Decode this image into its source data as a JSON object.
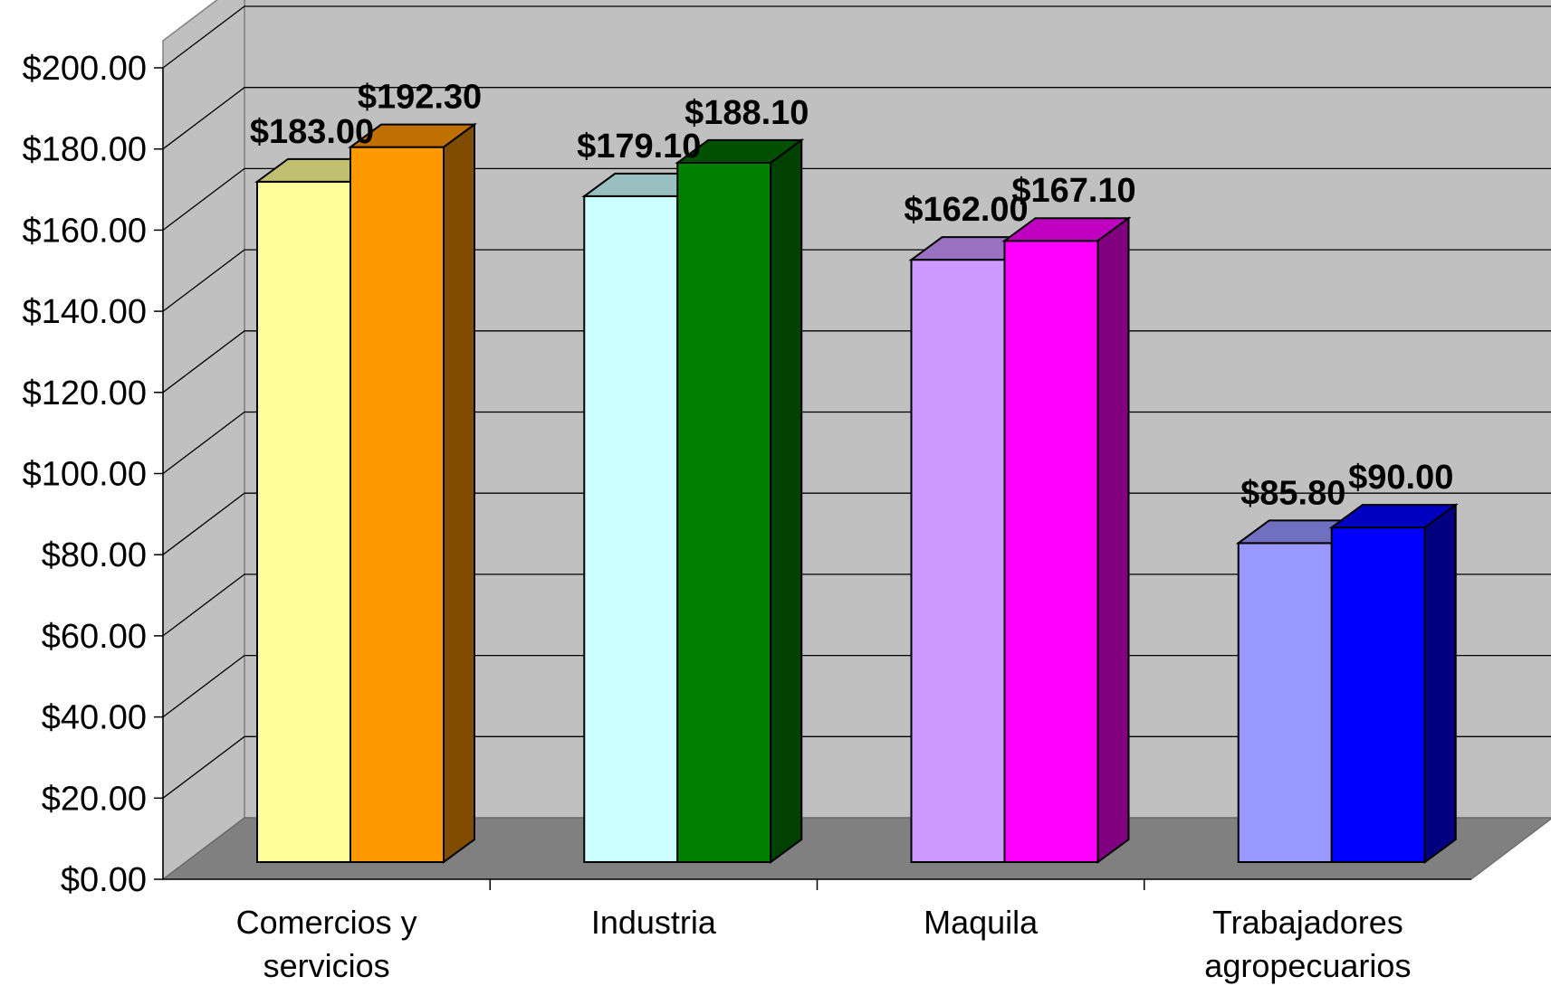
{
  "chart_data": {
    "type": "bar",
    "style": "3d-clustered-column",
    "categories": [
      [
        "Comercios y",
        "servicios"
      ],
      [
        "Industria"
      ],
      [
        "Maquila"
      ],
      [
        "Trabajadores",
        "agropecuarios"
      ]
    ],
    "series": [
      {
        "values": [
          183.0,
          179.1,
          162.0,
          85.8
        ],
        "front_colors": [
          "#FFFF99",
          "#CCFFFF",
          "#CC99FF",
          "#9999FF"
        ],
        "top_colors": [
          "#C0C070",
          "#99C0C0",
          "#9A70C0",
          "#7070C0"
        ],
        "side_colors": [
          "#808040",
          "#608080",
          "#604080",
          "#404080"
        ]
      },
      {
        "values": [
          192.3,
          188.1,
          167.1,
          90.0
        ],
        "front_colors": [
          "#FF9900",
          "#008000",
          "#FF00FF",
          "#0000FF"
        ],
        "top_colors": [
          "#C07000",
          "#005000",
          "#C000C0",
          "#0000C0"
        ],
        "side_colors": [
          "#7F4C00",
          "#004000",
          "#800080",
          "#000080"
        ]
      }
    ],
    "data_labels": [
      [
        "$183.00",
        "$179.10",
        "$162.00",
        "$85.80"
      ],
      [
        "$192.30",
        "$188.10",
        "$167.10",
        "$90.00"
      ]
    ],
    "y_tick_labels": [
      "$0.00",
      "$20.00",
      "$40.00",
      "$60.00",
      "$80.00",
      "$100.00",
      "$120.00",
      "$140.00",
      "$160.00",
      "$180.00",
      "$200.00"
    ],
    "ylim": [
      0,
      200
    ],
    "ystep": 20,
    "grid": true,
    "legend": "none",
    "wall_color": "#C0C0C0",
    "floor_color": "#808080",
    "title": "",
    "xlabel": "",
    "ylabel": ""
  }
}
